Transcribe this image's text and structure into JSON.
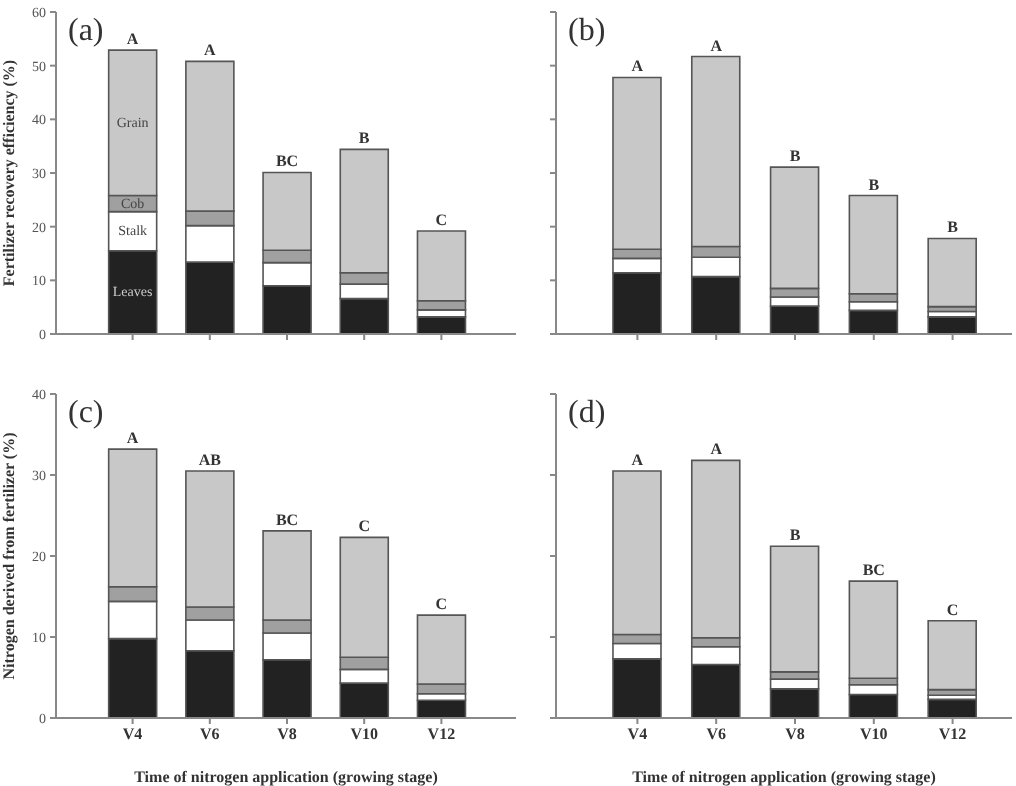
{
  "chart_data": [
    {
      "type": "bar",
      "stacked": true,
      "title": "(a)",
      "ylabel": "Fertilizer recovery efficiency (%)",
      "categories": [
        "V4",
        "V6",
        "V8",
        "V10",
        "V12"
      ],
      "tick_labels": "y",
      "ylim": [
        0,
        60
      ],
      "yticks": [
        0,
        10,
        20,
        30,
        40,
        50,
        60
      ],
      "series": [
        {
          "name": "Leaves",
          "color": "#222222",
          "values": [
            15.5,
            13.4,
            9.0,
            6.6,
            3.2
          ]
        },
        {
          "name": "Stalk",
          "color": "#ffffff",
          "values": [
            7.3,
            6.8,
            4.3,
            2.7,
            1.3
          ]
        },
        {
          "name": "Cob",
          "color": "#a0a0a0",
          "values": [
            3.0,
            2.7,
            2.3,
            2.1,
            1.7
          ]
        },
        {
          "name": "Grain",
          "color": "#c8c8c8",
          "values": [
            27.1,
            27.9,
            14.5,
            23.0,
            13.0
          ]
        }
      ],
      "annotations": [
        {
          "text": "A",
          "x": "V4",
          "y": 52.9
        },
        {
          "text": "A",
          "x": "V6",
          "y": 50.8
        },
        {
          "text": "BC",
          "x": "V8",
          "y": 30.1
        },
        {
          "text": "B",
          "x": "V10",
          "y": 34.4
        },
        {
          "text": "C",
          "x": "V12",
          "y": 19.2
        }
      ]
    },
    {
      "type": "bar",
      "stacked": true,
      "title": "(b)",
      "categories": [
        "V4",
        "V6",
        "V8",
        "V10",
        "V12"
      ],
      "tick_labels": false,
      "ylim": [
        0,
        60
      ],
      "yticks": [
        0,
        10,
        20,
        30,
        40,
        50,
        60
      ],
      "series": [
        {
          "color": "#222222",
          "values": [
            11.4,
            10.7,
            5.2,
            4.4,
            3.2
          ]
        },
        {
          "color": "#ffffff",
          "values": [
            2.7,
            3.6,
            1.7,
            1.6,
            1.0
          ]
        },
        {
          "color": "#a0a0a0",
          "values": [
            1.7,
            2.0,
            1.6,
            1.5,
            0.9
          ]
        },
        {
          "color": "#c8c8c8",
          "values": [
            32.0,
            35.4,
            22.6,
            18.3,
            12.7
          ]
        }
      ],
      "annotations": [
        {
          "text": "A",
          "x": "V4",
          "y": 47.8
        },
        {
          "text": "A",
          "x": "V6",
          "y": 51.7
        },
        {
          "text": "B",
          "x": "V8",
          "y": 31.1
        },
        {
          "text": "B",
          "x": "V10",
          "y": 25.8
        },
        {
          "text": "B",
          "x": "V12",
          "y": 17.8
        }
      ]
    },
    {
      "type": "bar",
      "stacked": true,
      "title": "(c)",
      "ylabel": "Nitrogen derived from fertilizer (%)",
      "xlabel": "Time of nitrogen application (growing stage)",
      "categories": [
        "V4",
        "V6",
        "V8",
        "V10",
        "V12"
      ],
      "ylim": [
        0,
        40
      ],
      "yticks": [
        0,
        10,
        20,
        30,
        40
      ],
      "series": [
        {
          "color": "#222222",
          "values": [
            9.8,
            8.3,
            7.2,
            4.3,
            2.2
          ]
        },
        {
          "color": "#ffffff",
          "values": [
            4.6,
            3.8,
            3.3,
            1.7,
            0.8
          ]
        },
        {
          "color": "#a0a0a0",
          "values": [
            1.8,
            1.6,
            1.6,
            1.5,
            1.2
          ]
        },
        {
          "color": "#c8c8c8",
          "values": [
            17.0,
            16.8,
            11.0,
            14.8,
            8.5
          ]
        }
      ],
      "annotations": [
        {
          "text": "A",
          "x": "V4",
          "y": 33.2
        },
        {
          "text": "AB",
          "x": "V6",
          "y": 30.5
        },
        {
          "text": "BC",
          "x": "V8",
          "y": 23.1
        },
        {
          "text": "C",
          "x": "V10",
          "y": 22.3
        },
        {
          "text": "C",
          "x": "V12",
          "y": 12.7
        }
      ]
    },
    {
      "type": "bar",
      "stacked": true,
      "title": "(d)",
      "xlabel": "Time of nitrogen application (growing stage)",
      "categories": [
        "V4",
        "V6",
        "V8",
        "V10",
        "V12"
      ],
      "tick_labels": "x",
      "ylim": [
        0,
        40
      ],
      "yticks": [
        0,
        10,
        20,
        30,
        40
      ],
      "series": [
        {
          "color": "#222222",
          "values": [
            7.3,
            6.6,
            3.6,
            2.9,
            2.3
          ]
        },
        {
          "color": "#ffffff",
          "values": [
            1.9,
            2.2,
            1.2,
            1.2,
            0.5
          ]
        },
        {
          "color": "#a0a0a0",
          "values": [
            1.1,
            1.1,
            0.9,
            0.8,
            0.7
          ]
        },
        {
          "color": "#c8c8c8",
          "values": [
            20.2,
            21.9,
            15.5,
            12.0,
            8.5
          ]
        }
      ],
      "annotations": [
        {
          "text": "A",
          "x": "V4",
          "y": 30.5
        },
        {
          "text": "A",
          "x": "V6",
          "y": 31.8
        },
        {
          "text": "B",
          "x": "V8",
          "y": 21.2
        },
        {
          "text": "BC",
          "x": "V10",
          "y": 16.9
        },
        {
          "text": "C",
          "x": "V12",
          "y": 12.0
        }
      ]
    }
  ]
}
